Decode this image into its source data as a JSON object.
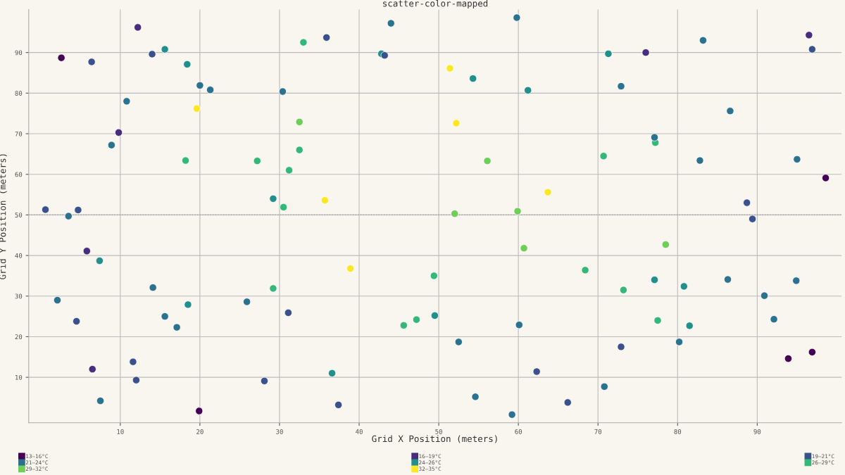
{
  "chart_data": {
    "type": "scatter",
    "title": "scatter-color-mapped",
    "xlabel": "Grid X Position (meters)",
    "ylabel": "Grid Y Position (meters)",
    "xlim": [
      -1.5,
      100.6
    ],
    "ylim": [
      -1.2,
      100.6
    ],
    "xticks": [
      10,
      20,
      30,
      40,
      50,
      60,
      70,
      80,
      90
    ],
    "yticks": [
      10,
      20,
      30,
      40,
      50,
      60,
      70,
      80,
      90
    ],
    "grid": true,
    "legend": "bottom",
    "marker": "circle",
    "ref_lines": [
      {
        "axis": "y",
        "value": 50,
        "color": "#999999",
        "line_style": "dotted"
      }
    ],
    "series": [
      {
        "name": "13–16°C",
        "color": "#440154",
        "x": [
          2.6,
          98.6,
          19.9,
          93.9,
          96.9
        ],
        "values": [
          88.7,
          59.1,
          1.7,
          14.6,
          16.2
        ]
      },
      {
        "name": "16–19°C",
        "color": "#472d7b",
        "x": [
          12.2,
          9.8,
          5.8,
          6.5,
          76.0,
          96.5
        ],
        "values": [
          96.2,
          70.3,
          41.1,
          12.0,
          90.0,
          94.3
        ]
      },
      {
        "name": "19–21°C",
        "color": "#3b518b",
        "x": [
          6.4,
          14.0,
          0.6,
          4.7,
          35.9,
          43.2,
          96.9,
          88.7,
          89.4,
          4.5,
          31.1,
          11.6,
          12.0,
          28.1,
          37.4,
          62.3,
          66.2,
          72.9
        ],
        "values": [
          87.7,
          89.6,
          51.3,
          51.2,
          93.7,
          89.3,
          90.8,
          53.0,
          49.0,
          23.8,
          25.9,
          13.8,
          9.3,
          9.1,
          3.2,
          11.4,
          3.8,
          17.5
        ]
      },
      {
        "name": "21–24°C",
        "color": "#2c718e",
        "x": [
          20.0,
          21.3,
          30.4,
          10.8,
          8.9,
          3.5,
          44.0,
          59.8,
          83.2,
          72.9,
          86.6,
          77.1,
          82.8,
          95.0,
          14.1,
          2.1,
          15.6,
          17.1,
          25.9,
          7.5,
          60.1,
          52.5,
          54.6,
          59.2,
          86.3,
          94.9,
          90.9,
          92.1,
          80.2,
          70.8
        ],
        "values": [
          81.9,
          80.8,
          80.4,
          78.0,
          67.2,
          49.7,
          97.2,
          98.6,
          93.0,
          81.7,
          75.6,
          69.1,
          63.4,
          63.7,
          32.1,
          29.0,
          25.0,
          22.3,
          28.6,
          4.2,
          22.9,
          18.7,
          5.2,
          0.8,
          34.1,
          33.8,
          30.1,
          24.3,
          18.7,
          7.7
        ]
      },
      {
        "name": "24–26°C",
        "color": "#21908d",
        "x": [
          15.6,
          18.4,
          29.2,
          42.8,
          54.3,
          61.2,
          71.3,
          7.4,
          18.5,
          49.5,
          36.6,
          77.1,
          80.8,
          81.5
        ],
        "values": [
          90.8,
          87.1,
          54.0,
          89.7,
          83.6,
          80.7,
          89.7,
          38.7,
          27.9,
          25.2,
          11.0,
          34.0,
          32.4,
          22.7
        ]
      },
      {
        "name": "26–29°C",
        "color": "#35b779",
        "x": [
          18.2,
          27.2,
          31.2,
          32.5,
          33.0,
          30.5,
          77.2,
          70.7,
          29.2,
          49.4,
          47.2,
          45.6,
          68.4,
          73.2,
          77.5
        ],
        "values": [
          63.4,
          63.3,
          61.0,
          66.0,
          92.5,
          51.9,
          67.8,
          64.5,
          31.9,
          35.0,
          24.2,
          22.8,
          36.4,
          31.5,
          24.0
        ]
      },
      {
        "name": "29–32°C",
        "color": "#6ece58",
        "x": [
          32.5,
          56.1,
          52.0,
          59.9,
          60.7,
          78.5
        ],
        "values": [
          72.9,
          63.3,
          50.3,
          50.9,
          41.8,
          42.7
        ]
      },
      {
        "name": "32–35°C",
        "color": "#fde725",
        "x": [
          19.6,
          51.4,
          52.2,
          35.7,
          63.7,
          38.9
        ],
        "values": [
          76.2,
          86.1,
          72.6,
          53.6,
          55.6,
          36.8
        ]
      }
    ]
  }
}
